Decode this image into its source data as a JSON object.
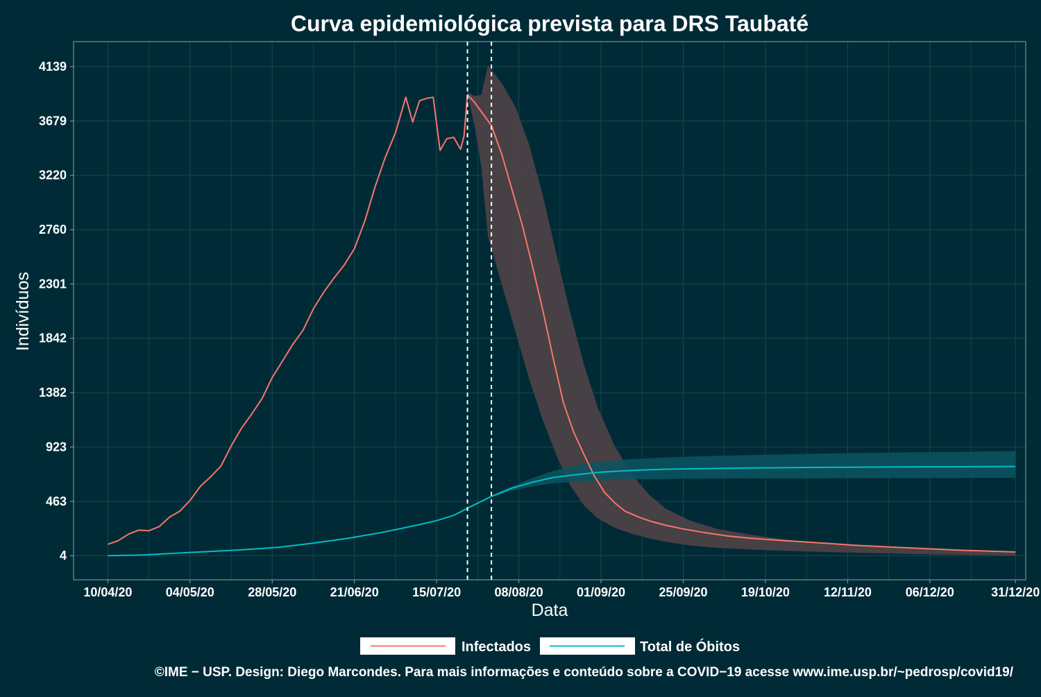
{
  "chart_data": {
    "type": "line",
    "title": "Curva epidemiológica prevista para DRS Taubaté",
    "xlabel": "Data",
    "ylabel": "Indivíduos",
    "x_ticks": [
      "10/04/20",
      "04/05/20",
      "28/05/20",
      "21/06/20",
      "15/07/20",
      "08/08/20",
      "01/09/20",
      "25/09/20",
      "19/10/20",
      "12/11/20",
      "06/12/20",
      "31/12/20"
    ],
    "y_ticks": [
      4,
      463,
      923,
      1382,
      1842,
      2301,
      2760,
      3220,
      3679,
      4139
    ],
    "x_range": [
      "2020-03-31",
      "2021-01-03"
    ],
    "ylim": [
      -200,
      4350
    ],
    "grid": true,
    "legend_position": "bottom",
    "vlines": [
      "2020-07-24",
      "2020-07-31"
    ],
    "colors": {
      "background": "#002b36",
      "infectados": "#f8766d",
      "obitos": "#00bfc4",
      "band_infectados": "#4b4146",
      "band_obitos": "#0b5560",
      "grid": "#1c4650",
      "axis": "#8fa5a9"
    },
    "series": [
      {
        "name": "Infectados",
        "x": [
          "2020-04-10",
          "2020-04-13",
          "2020-04-16",
          "2020-04-19",
          "2020-04-22",
          "2020-04-25",
          "2020-04-28",
          "2020-05-01",
          "2020-05-04",
          "2020-05-07",
          "2020-05-10",
          "2020-05-13",
          "2020-05-16",
          "2020-05-19",
          "2020-05-22",
          "2020-05-25",
          "2020-05-28",
          "2020-05-31",
          "2020-06-03",
          "2020-06-06",
          "2020-06-09",
          "2020-06-12",
          "2020-06-15",
          "2020-06-18",
          "2020-06-21",
          "2020-06-24",
          "2020-06-27",
          "2020-06-30",
          "2020-07-03",
          "2020-07-06",
          "2020-07-08",
          "2020-07-10",
          "2020-07-12",
          "2020-07-14",
          "2020-07-16",
          "2020-07-18",
          "2020-07-20",
          "2020-07-22",
          "2020-07-23",
          "2020-07-24",
          "2020-07-26",
          "2020-07-28",
          "2020-07-31",
          "2020-08-03",
          "2020-08-06",
          "2020-08-09",
          "2020-08-12",
          "2020-08-15",
          "2020-08-18",
          "2020-08-21",
          "2020-08-24",
          "2020-08-27",
          "2020-08-30",
          "2020-09-02",
          "2020-09-05",
          "2020-09-08",
          "2020-09-12",
          "2020-09-16",
          "2020-09-20",
          "2020-09-25",
          "2020-10-01",
          "2020-10-08",
          "2020-10-15",
          "2020-10-25",
          "2020-11-05",
          "2020-11-15",
          "2020-11-30",
          "2020-12-15",
          "2020-12-31"
        ],
        "y": [
          100,
          130,
          185,
          220,
          215,
          250,
          330,
          380,
          470,
          590,
          670,
          760,
          930,
          1080,
          1200,
          1330,
          1510,
          1650,
          1790,
          1910,
          2090,
          2230,
          2350,
          2460,
          2600,
          2830,
          3120,
          3370,
          3580,
          3880,
          3670,
          3850,
          3870,
          3880,
          3430,
          3530,
          3540,
          3440,
          3550,
          3900,
          3840,
          3760,
          3640,
          3400,
          3100,
          2800,
          2450,
          2080,
          1680,
          1300,
          1050,
          860,
          680,
          540,
          450,
          380,
          330,
          290,
          260,
          230,
          200,
          170,
          150,
          130,
          110,
          90,
          70,
          50,
          35
        ]
      },
      {
        "name": "Total de Óbitos",
        "x": [
          "2020-04-10",
          "2020-04-20",
          "2020-04-30",
          "2020-05-10",
          "2020-05-20",
          "2020-05-30",
          "2020-06-09",
          "2020-06-19",
          "2020-06-29",
          "2020-07-09",
          "2020-07-15",
          "2020-07-20",
          "2020-07-25",
          "2020-07-31",
          "2020-08-06",
          "2020-08-12",
          "2020-08-18",
          "2020-08-25",
          "2020-09-01",
          "2020-09-10",
          "2020-09-20",
          "2020-10-01",
          "2020-10-15",
          "2020-11-01",
          "2020-11-15",
          "2020-12-01",
          "2020-12-15",
          "2020-12-31"
        ],
        "y": [
          4,
          10,
          25,
          40,
          55,
          75,
          110,
          150,
          200,
          260,
          300,
          345,
          420,
          505,
          575,
          625,
          665,
          690,
          710,
          725,
          735,
          740,
          745,
          750,
          752,
          755,
          756,
          758
        ]
      }
    ],
    "bands": [
      {
        "name": "Infectados",
        "x": [
          "2020-07-24",
          "2020-07-26",
          "2020-07-28",
          "2020-07-30",
          "2020-08-03",
          "2020-08-07",
          "2020-08-11",
          "2020-08-15",
          "2020-08-19",
          "2020-08-23",
          "2020-08-27",
          "2020-08-31",
          "2020-09-05",
          "2020-09-10",
          "2020-09-15",
          "2020-09-20",
          "2020-09-27",
          "2020-10-05",
          "2020-10-15",
          "2020-10-25",
          "2020-11-05",
          "2020-11-20",
          "2020-12-05",
          "2020-12-20",
          "2020-12-31"
        ],
        "lower": [
          3900,
          3650,
          3300,
          2700,
          2300,
          1900,
          1500,
          1150,
          850,
          600,
          430,
          320,
          240,
          190,
          150,
          120,
          90,
          70,
          55,
          45,
          35,
          25,
          15,
          10,
          5
        ],
        "upper": [
          3920,
          3890,
          3900,
          4150,
          4000,
          3800,
          3480,
          3050,
          2550,
          2060,
          1620,
          1260,
          930,
          690,
          520,
          400,
          300,
          230,
          180,
          140,
          110,
          80,
          60,
          45,
          40
        ]
      },
      {
        "name": "Total de Óbitos",
        "x": [
          "2020-07-31",
          "2020-08-06",
          "2020-08-12",
          "2020-08-18",
          "2020-08-25",
          "2020-09-01",
          "2020-09-10",
          "2020-09-20",
          "2020-10-01",
          "2020-10-15",
          "2020-11-01",
          "2020-11-15",
          "2020-12-01",
          "2020-12-15",
          "2020-12-31"
        ],
        "lower": [
          500,
          555,
          590,
          615,
          630,
          640,
          648,
          652,
          655,
          657,
          658,
          659,
          660,
          661,
          662
        ],
        "upper": [
          510,
          590,
          660,
          720,
          770,
          800,
          820,
          835,
          845,
          855,
          865,
          872,
          878,
          882,
          888
        ]
      }
    ],
    "legend": [
      "Infectados",
      "Total de Óbitos"
    ],
    "caption": "©IME − USP. Design: Diego Marcondes. Para mais informações e conteúdo sobre a COVID−19 acesse www.ime.usp.br/~pedrosp/covid19/"
  }
}
